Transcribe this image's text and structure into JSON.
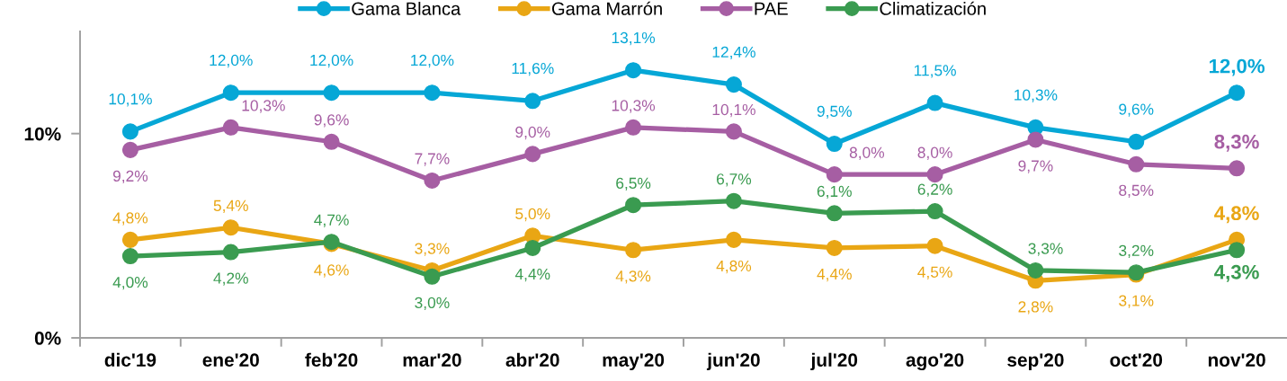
{
  "chart_data": {
    "type": "line",
    "categories": [
      "dic'19",
      "ene'20",
      "feb'20",
      "mar'20",
      "abr'20",
      "may'20",
      "jun'20",
      "jul'20",
      "ago'20",
      "sep'20",
      "oct'20",
      "nov'20"
    ],
    "series": [
      {
        "name": "Gama Blanca",
        "color": "#06a7d6",
        "values": [
          10.1,
          12.0,
          12.0,
          12.0,
          11.6,
          13.1,
          12.4,
          9.5,
          11.5,
          10.3,
          9.6,
          12.0
        ],
        "value_labels": [
          "10,1%",
          "12,0%",
          "12,0%",
          "12,0%",
          "11,6%",
          "13,1%",
          "12,4%",
          "9,5%",
          "11,5%",
          "10,3%",
          "9,6%",
          "12,0%"
        ]
      },
      {
        "name": "Gama Marrón",
        "color": "#e9a614",
        "values": [
          4.8,
          5.4,
          4.6,
          3.3,
          5.0,
          4.3,
          4.8,
          4.4,
          4.5,
          2.8,
          3.1,
          4.8
        ],
        "value_labels": [
          "4,8%",
          "5,4%",
          "4,6%",
          "3,3%",
          "5,0%",
          "4,3%",
          "4,8%",
          "4,4%",
          "4,5%",
          "2,8%",
          "3,1%",
          "4,8%"
        ]
      },
      {
        "name": "PAE",
        "color": "#a65ea3",
        "values": [
          9.2,
          10.3,
          9.6,
          7.7,
          9.0,
          10.3,
          10.1,
          8.0,
          8.0,
          9.7,
          8.5,
          8.3
        ],
        "value_labels": [
          "9,2%",
          "10,3%",
          "9,6%",
          "7,7%",
          "9,0%",
          "10,3%",
          "10,1%",
          "8,0%",
          "8,0%",
          "9,7%",
          "8,5%",
          "8,3%"
        ]
      },
      {
        "name": "Climatización",
        "color": "#3a9b50",
        "values": [
          4.0,
          4.2,
          4.7,
          3.0,
          4.4,
          6.5,
          6.7,
          6.1,
          6.2,
          3.3,
          3.2,
          4.3
        ],
        "value_labels": [
          "4,0%",
          "4,2%",
          "4,7%",
          "3,0%",
          "4,4%",
          "6,5%",
          "6,7%",
          "6,1%",
          "6,2%",
          "3,3%",
          "3,2%",
          "4,3%"
        ]
      }
    ],
    "ylim": [
      0,
      15
    ],
    "yticks": [
      {
        "value": 0,
        "label": "0%"
      },
      {
        "value": 10,
        "label": "10%"
      }
    ],
    "legend": "top",
    "marker": "circle",
    "line_style": "solid"
  }
}
